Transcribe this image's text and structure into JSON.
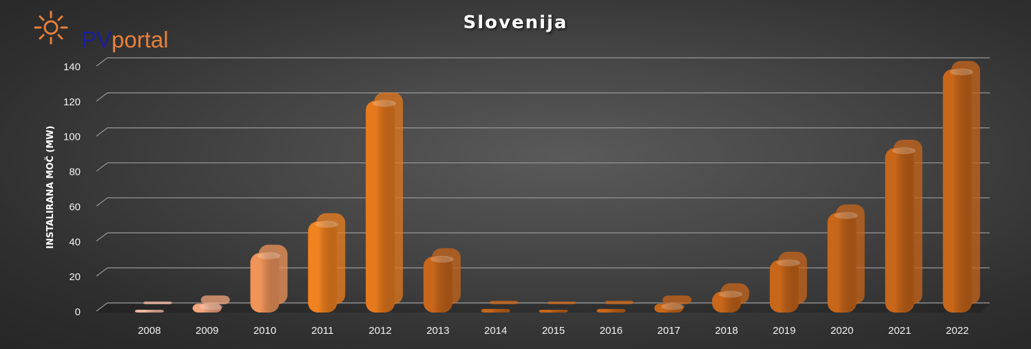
{
  "logo": {
    "brand_prefix": "PV",
    "brand_suffix": "portal",
    "icon": "sun-icon"
  },
  "chart_data": {
    "type": "bar",
    "title": "Slovenija",
    "xlabel": "",
    "ylabel": "INSTALIRANA MOČ (MW)",
    "ylim": [
      0,
      140
    ],
    "yticks": [
      0,
      20,
      40,
      60,
      80,
      100,
      120,
      140
    ],
    "categories": [
      "2008",
      "2009",
      "2010",
      "2011",
      "2012",
      "2013",
      "2014",
      "2015",
      "2016",
      "2017",
      "2018",
      "2019",
      "2020",
      "2021",
      "2022"
    ],
    "values": [
      1,
      5,
      34,
      52,
      121,
      32,
      2,
      1,
      2,
      5,
      12,
      30,
      57,
      94,
      139
    ],
    "grid": true,
    "legend": "none",
    "colors": {
      "2008": "#f2b8a0",
      "2009": "#f4a57e",
      "2010": "#f0945a",
      "2011": "#f0821f",
      "2012": "#e6791e",
      "default": "#c8661a"
    }
  }
}
